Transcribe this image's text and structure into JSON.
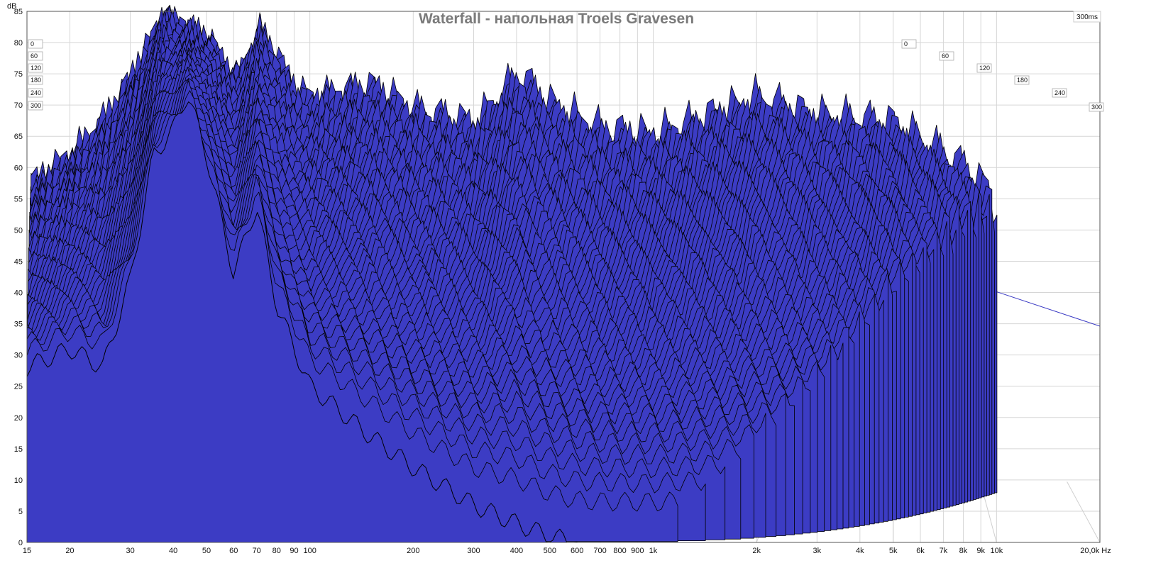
{
  "chart_data": {
    "type": "area",
    "title": "Waterfall - напольная Troels Gravesen",
    "ylabel": "dB",
    "xlabel": "Hz",
    "x_scale": "log",
    "xlim": [
      15,
      20000
    ],
    "ylim": [
      0,
      85
    ],
    "grid": true,
    "y_ticks": [
      "0",
      "5",
      "10",
      "15",
      "20",
      "25",
      "30",
      "35",
      "40",
      "45",
      "50",
      "55",
      "60",
      "65",
      "70",
      "75",
      "80",
      "85"
    ],
    "x_ticks": [
      {
        "value": 15,
        "label": "15"
      },
      {
        "value": 20,
        "label": "20"
      },
      {
        "value": 30,
        "label": "30"
      },
      {
        "value": 40,
        "label": "40"
      },
      {
        "value": 50,
        "label": "50"
      },
      {
        "value": 60,
        "label": "60"
      },
      {
        "value": 70,
        "label": "70"
      },
      {
        "value": 80,
        "label": "80"
      },
      {
        "value": 90,
        "label": "90"
      },
      {
        "value": 100,
        "label": "100"
      },
      {
        "value": 200,
        "label": "200"
      },
      {
        "value": 300,
        "label": "300"
      },
      {
        "value": 400,
        "label": "400"
      },
      {
        "value": 500,
        "label": "500"
      },
      {
        "value": 600,
        "label": "600"
      },
      {
        "value": 700,
        "label": "700"
      },
      {
        "value": 800,
        "label": "800"
      },
      {
        "value": 900,
        "label": "900"
      },
      {
        "value": 1000,
        "label": "1k"
      },
      {
        "value": 2000,
        "label": "2k"
      },
      {
        "value": 3000,
        "label": "3k"
      },
      {
        "value": 4000,
        "label": "4k"
      },
      {
        "value": 5000,
        "label": "5k"
      },
      {
        "value": 6000,
        "label": "6k"
      },
      {
        "value": 7000,
        "label": "7k"
      },
      {
        "value": 8000,
        "label": "8k"
      },
      {
        "value": 9000,
        "label": "9k"
      },
      {
        "value": 10000,
        "label": "10k"
      },
      {
        "value": 20000,
        "label": "20,0k Hz"
      }
    ],
    "time_axis_label": "300ms",
    "time_slices_left": [
      "0",
      "60",
      "120",
      "180",
      "240",
      "300"
    ],
    "time_slices_right": [
      "0",
      "60",
      "120",
      "180",
      "240",
      "300"
    ],
    "fill_color": "#3c3cc4",
    "line_color": "#000000",
    "cursor_hz": 37,
    "front_slice": [
      [
        15,
        28
      ],
      [
        20,
        31
      ],
      [
        25,
        28
      ],
      [
        30,
        42
      ],
      [
        35,
        62
      ],
      [
        40,
        66
      ],
      [
        44,
        72
      ],
      [
        50,
        62
      ],
      [
        60,
        43
      ],
      [
        70,
        54
      ],
      [
        80,
        38
      ],
      [
        100,
        25
      ],
      [
        150,
        17
      ],
      [
        200,
        12
      ],
      [
        300,
        6
      ],
      [
        400,
        3
      ],
      [
        500,
        1
      ],
      [
        600,
        0
      ]
    ],
    "ridge_peaks": [
      [
        15,
        52
      ],
      [
        20,
        57
      ],
      [
        25,
        63
      ],
      [
        30,
        70
      ],
      [
        35,
        77
      ],
      [
        37,
        80
      ],
      [
        40,
        78
      ],
      [
        50,
        75
      ],
      [
        60,
        69
      ],
      [
        70,
        77
      ],
      [
        80,
        72
      ],
      [
        90,
        67
      ],
      [
        100,
        66
      ],
      [
        120,
        67
      ],
      [
        150,
        68
      ],
      [
        200,
        64
      ],
      [
        300,
        62
      ],
      [
        400,
        70
      ],
      [
        500,
        65
      ],
      [
        700,
        61
      ],
      [
        1000,
        60
      ],
      [
        2000,
        66
      ],
      [
        3000,
        63
      ],
      [
        5000,
        62
      ],
      [
        8000,
        55
      ],
      [
        10000,
        50
      ]
    ]
  }
}
